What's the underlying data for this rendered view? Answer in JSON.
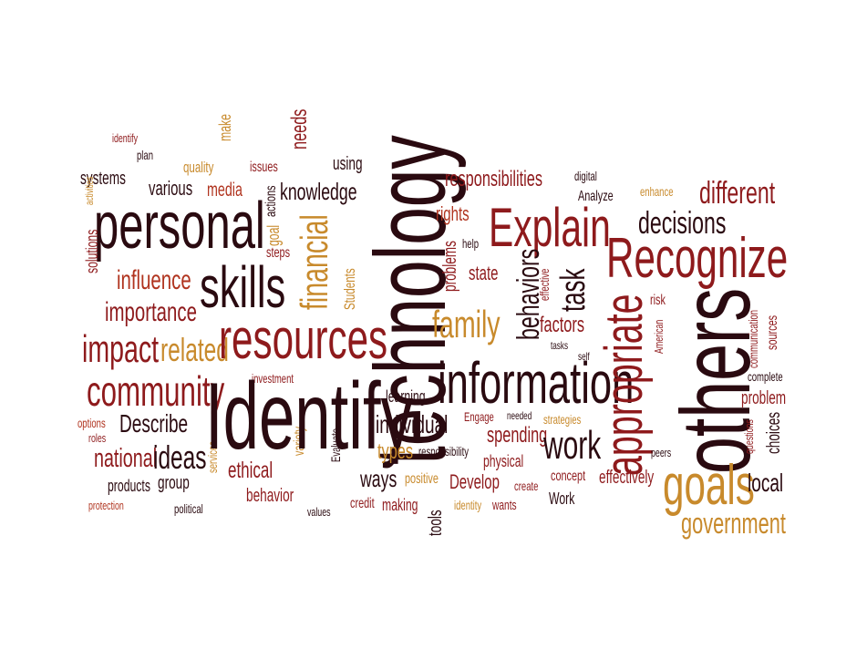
{
  "palette": {
    "darkest": "#2a0a10",
    "crimson": "#8e1a1c",
    "red": "#b0331e",
    "gold": "#c88a2c",
    "background": "#ffffff"
  },
  "words": {
    "identify_lg": "Identify",
    "technology": "technology",
    "others": "others",
    "personal": "personal",
    "information": "information",
    "resources": "resources",
    "recognize": "Recognize",
    "skills": "skills",
    "appropriate": "appropriate",
    "goals": "goals",
    "explain": "Explain",
    "financial": "financial",
    "community": "community",
    "impact": "impact",
    "work": "work",
    "family": "family",
    "different": "different",
    "decisions": "decisions",
    "ideas": "ideas",
    "importance": "importance",
    "influence": "influence",
    "related": "related",
    "describe": "Describe",
    "government": "government",
    "knowledge": "knowledge",
    "responsibilities": "responsibilities",
    "individual": "individual",
    "behaviors": "behaviors",
    "task": "task",
    "factors": "factors",
    "local": "local",
    "national": "national",
    "ethical": "ethical",
    "ways": "ways",
    "problem": "problem",
    "state": "state",
    "rights": "rights",
    "problems": "problems",
    "effectively": "effectively",
    "various": "various",
    "media": "media",
    "quality": "quality",
    "make": "make",
    "needs": "needs",
    "using": "using",
    "issues": "issues",
    "systems": "systems",
    "plan": "plan",
    "identify_sm": "identify",
    "activities": "activities",
    "solutions": "solutions",
    "steps": "steps",
    "actions": "actions",
    "goal": "goal",
    "students": "Students",
    "help": "help",
    "analyze": "Analyze",
    "digital": "digital",
    "enhance": "enhance",
    "effective": "effective",
    "risk": "risk",
    "american": "American",
    "communication": "communication",
    "sources": "sources",
    "self": "self",
    "tasks": "tasks",
    "complete": "complete",
    "questions": "questions",
    "choices": "choices",
    "peers": "peers",
    "learning": "learning",
    "investment": "investment",
    "engage": "Engage",
    "needed": "needed",
    "strategies": "strategies",
    "spending": "spending",
    "physical": "physical",
    "responsibility": "responsibility",
    "types": "types",
    "options": "options",
    "roles": "roles",
    "products": "products",
    "group": "group",
    "services": "services",
    "variety": "variety",
    "behavior": "behavior",
    "evaluate": "Evaluate",
    "credit": "credit",
    "making": "making",
    "tools": "tools",
    "positive": "positive",
    "develop": "Develop",
    "identity": "identity",
    "wants": "wants",
    "create": "create",
    "concept": "concept",
    "work_sm": "Work",
    "protection": "protection",
    "political": "political",
    "values": "values"
  }
}
